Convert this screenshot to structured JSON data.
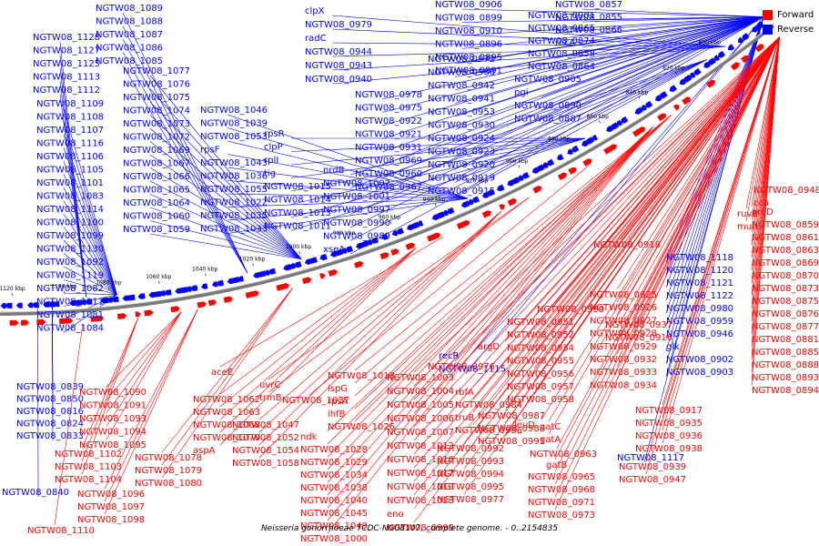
{
  "caption": "Neisseria gonorrhoeae TCDC-NG08107, complete genome. - 0..2154835",
  "legend": [
    {
      "label": "Forward",
      "color": "#ff0000"
    },
    {
      "label": "Reverse",
      "color": "#0000ff"
    }
  ],
  "colors": {
    "forward": "#ff0000",
    "reverse": "#0000ff",
    "backbone": "#808080"
  },
  "kbp_ticks": [
    "1120 kbp",
    "1100 kbp",
    "1080 kbp",
    "1060 kbp",
    "1040 kbp",
    "1020 kbp",
    "1000 kbp",
    "980 kbp",
    "960 kbp",
    "940 kbp",
    "920 kbp",
    "900 kbp",
    "880 kbp",
    "860 kbp",
    "840 kbp",
    "820 kbp",
    "800 kbp"
  ],
  "reverse_labels": [
    "NGTW08_1089",
    "NGTW08_1088",
    "NGTW08_1087",
    "NGTW08_1086",
    "NGTW08_1085",
    "NGTW08_1077",
    "NGTW08_1076",
    "NGTW08_1075",
    "NGTW08_1074",
    "NGTW08_1073",
    "NGTW08_1072",
    "NGTW08_1069",
    "NGTW08_1067",
    "NGTW08_1066",
    "NGTW08_1065",
    "NGTW08_1064",
    "NGTW08_1060",
    "NGTW08_1059",
    "NGTW08_1128",
    "NGTW08_1127",
    "NGTW08_1125",
    "NGTW08_1113",
    "NGTW08_1112",
    "NGTW08_1109",
    "NGTW08_1108",
    "NGTW08_1107",
    "NGTW08_1116",
    "NGTW08_1106",
    "NGTW08_1105",
    "NGTW08_1101",
    "NGTW08_1083",
    "NGTW08_1114",
    "NGTW08_1100",
    "NGTW08_1099",
    "NGTW08_1130",
    "NGTW08_1092",
    "NGTW08_1119",
    "NGTW08_1082",
    "NGTW08_1111",
    "NGTW08_1081",
    "NGTW08_1084",
    "NGTW08_1046",
    "NGTW08_1039",
    "NGTW08_1053",
    "rpsF",
    "NGTW08_1043",
    "NGTW08_1036",
    "NGTW08_1055",
    "NGTW08_1022",
    "NGTW08_1035",
    "NGTW08_1033",
    "rpsR",
    "clpP",
    "rplI",
    "tig",
    "NGTW08_1015",
    "NGTW08_1014",
    "NGTW08_1013",
    "NGTW08_1011",
    "nrdB",
    "NGTW08_1002",
    "NGTW08_1001",
    "NGTW08_0997",
    "NGTW08_0990",
    "NGTW08_0989",
    "xseA",
    "clpX",
    "NGTW08_0979",
    "radC",
    "NGTW08_0944",
    "NGTW08_0943",
    "NGTW08_0940",
    "NGTW08_0978",
    "NGTW08_0975",
    "NGTW08_0922",
    "NGTW08_0921",
    "NGTW08_0931",
    "NGTW08_0969",
    "NGTW08_0960",
    "NGTW08_0967",
    "NGTW08_0972",
    "NGTW08_0966",
    "NGTW08_0942",
    "NGTW08_0941",
    "NGTW08_0953",
    "NGTW08_0930",
    "NGTW08_0924",
    "NGTW08_0923",
    "NGTW08_0920",
    "NGTW08_0919",
    "NGTW08_0915",
    "NGTW08_0906",
    "NGTW08_0899",
    "NGTW08_0910",
    "NGTW08_0896",
    "NGTW08_0895",
    "NGTW08_0891",
    "NGTW08_0905",
    "pgi",
    "NGTW08_0890",
    "NGTW08_0887",
    "NGTW08_0901",
    "NGTW08_0865",
    "NGTW08_0874",
    "NGTW08_0858",
    "NGTW08_0864",
    "NGTW08_0857",
    "NGTW08_0855",
    "NGTW08_0866",
    "recA",
    "NGTW08_0839",
    "NGTW08_0850",
    "NGTW08_0816",
    "NGTW08_0824",
    "NGTW08_0833",
    "NGTW08_0840",
    "recR",
    "NGTW08_1115",
    "NGTW08_1117",
    "NGTW08_1118",
    "NGTW08_1120",
    "NGTW08_1121",
    "NGTW08_1122",
    "NGTW08_0980",
    "NGTW08_0959",
    "NGTW08_0946",
    "glk",
    "NGTW08_0902",
    "NGTW08_0903",
    "NGTW08_0904",
    "NGTW08_0908",
    "NGTW08_0909",
    "NGTW08_0911",
    "NGTW08_0912",
    "NGTW08_0913",
    "NGTW08_0914"
  ],
  "forward_labels": [
    "NGTW08_1090",
    "NGTW08_1091",
    "NGTW08_1093",
    "NGTW08_1094",
    "NGTW08_1095",
    "NGTW08_1102",
    "NGTW08_1103",
    "NGTW08_1104",
    "NGTW08_1096",
    "NGTW08_1097",
    "NGTW08_1098",
    "NGTW08_1110",
    "NGTW08_1078",
    "NGTW08_1079",
    "NGTW08_1080",
    "aceE",
    "NGTW08_1062",
    "NGTW08_1063",
    "NGTW08_1068",
    "NGTW08_1070",
    "aspA",
    "uvrC",
    "trmB",
    "NGTW08_1047",
    "NGTW08_1052",
    "NGTW08_1054",
    "NGTW08_1058",
    "NGTW08_1037",
    "NGTW08_1018",
    "ispG",
    "rpsA",
    "ihfB",
    "NGTW08_1026",
    "ndk",
    "NGTW08_1028",
    "NGTW08_1029",
    "NGTW08_1034",
    "NGTW08_1038",
    "NGTW08_1040",
    "NGTW08_1045",
    "NGTW08_1049",
    "NGTW08_1000",
    "NGTW08_1003",
    "NGTW08_1004",
    "NGTW08_1005",
    "NGTW08_1006",
    "NGTW08_1007",
    "NGTW08_1012",
    "NGTW08_1016",
    "NGTW08_1017",
    "NGTW08_1019",
    "NGTW08_1023",
    "eno",
    "NGTW08_0999",
    "NGTW08_0976",
    "argD",
    "rbfA",
    "NGTW08_0984",
    "truB",
    "NGTW08_0986",
    "NGTW08_0987",
    "NGTW08_0988",
    "NGTW08_0991",
    "NGTW08_0992",
    "NGTW08_0993",
    "NGTW08_0994",
    "NGTW08_0995",
    "NGTW08_0977",
    "leuD",
    "NGTW08_0950",
    "NGTW08_0951",
    "NGTW08_0952",
    "NGTW08_0954",
    "NGTW08_0955",
    "NGTW08_0956",
    "NGTW08_0957",
    "NGTW08_0958",
    "gatC",
    "gatA",
    "NGTW08_0963",
    "gatB",
    "NGTW08_0965",
    "NGTW08_0968",
    "NGTW08_0971",
    "NGTW08_0973",
    "NGTW08_0918",
    "NGTW08_0925",
    "NGTW08_0926",
    "NGTW08_0927",
    "NGTW08_0928",
    "NGTW08_0929",
    "NGTW08_0932",
    "NGTW08_0933",
    "NGTW08_0934",
    "NGTW08_0937",
    "NGTW08_0916",
    "NGTW08_0917",
    "NGTW08_0935",
    "NGTW08_0936",
    "NGTW08_0938",
    "NGTW08_0939",
    "NGTW08_0947",
    "NGTW08_0948",
    "cca",
    "ruvB",
    "mutL",
    "aroD",
    "NGTW08_0859",
    "NGTW08_0861",
    "NGTW08_0863",
    "NGTW08_0869",
    "NGTW08_0870",
    "NGTW08_0873",
    "NGTW08_0875",
    "NGTW08_0876",
    "NGTW08_0877",
    "NGTW08_0881",
    "NGTW08_0885",
    "NGTW08_0888",
    "NGTW08_0893",
    "NGTW08_0894",
    "NGTW08_0907"
  ]
}
